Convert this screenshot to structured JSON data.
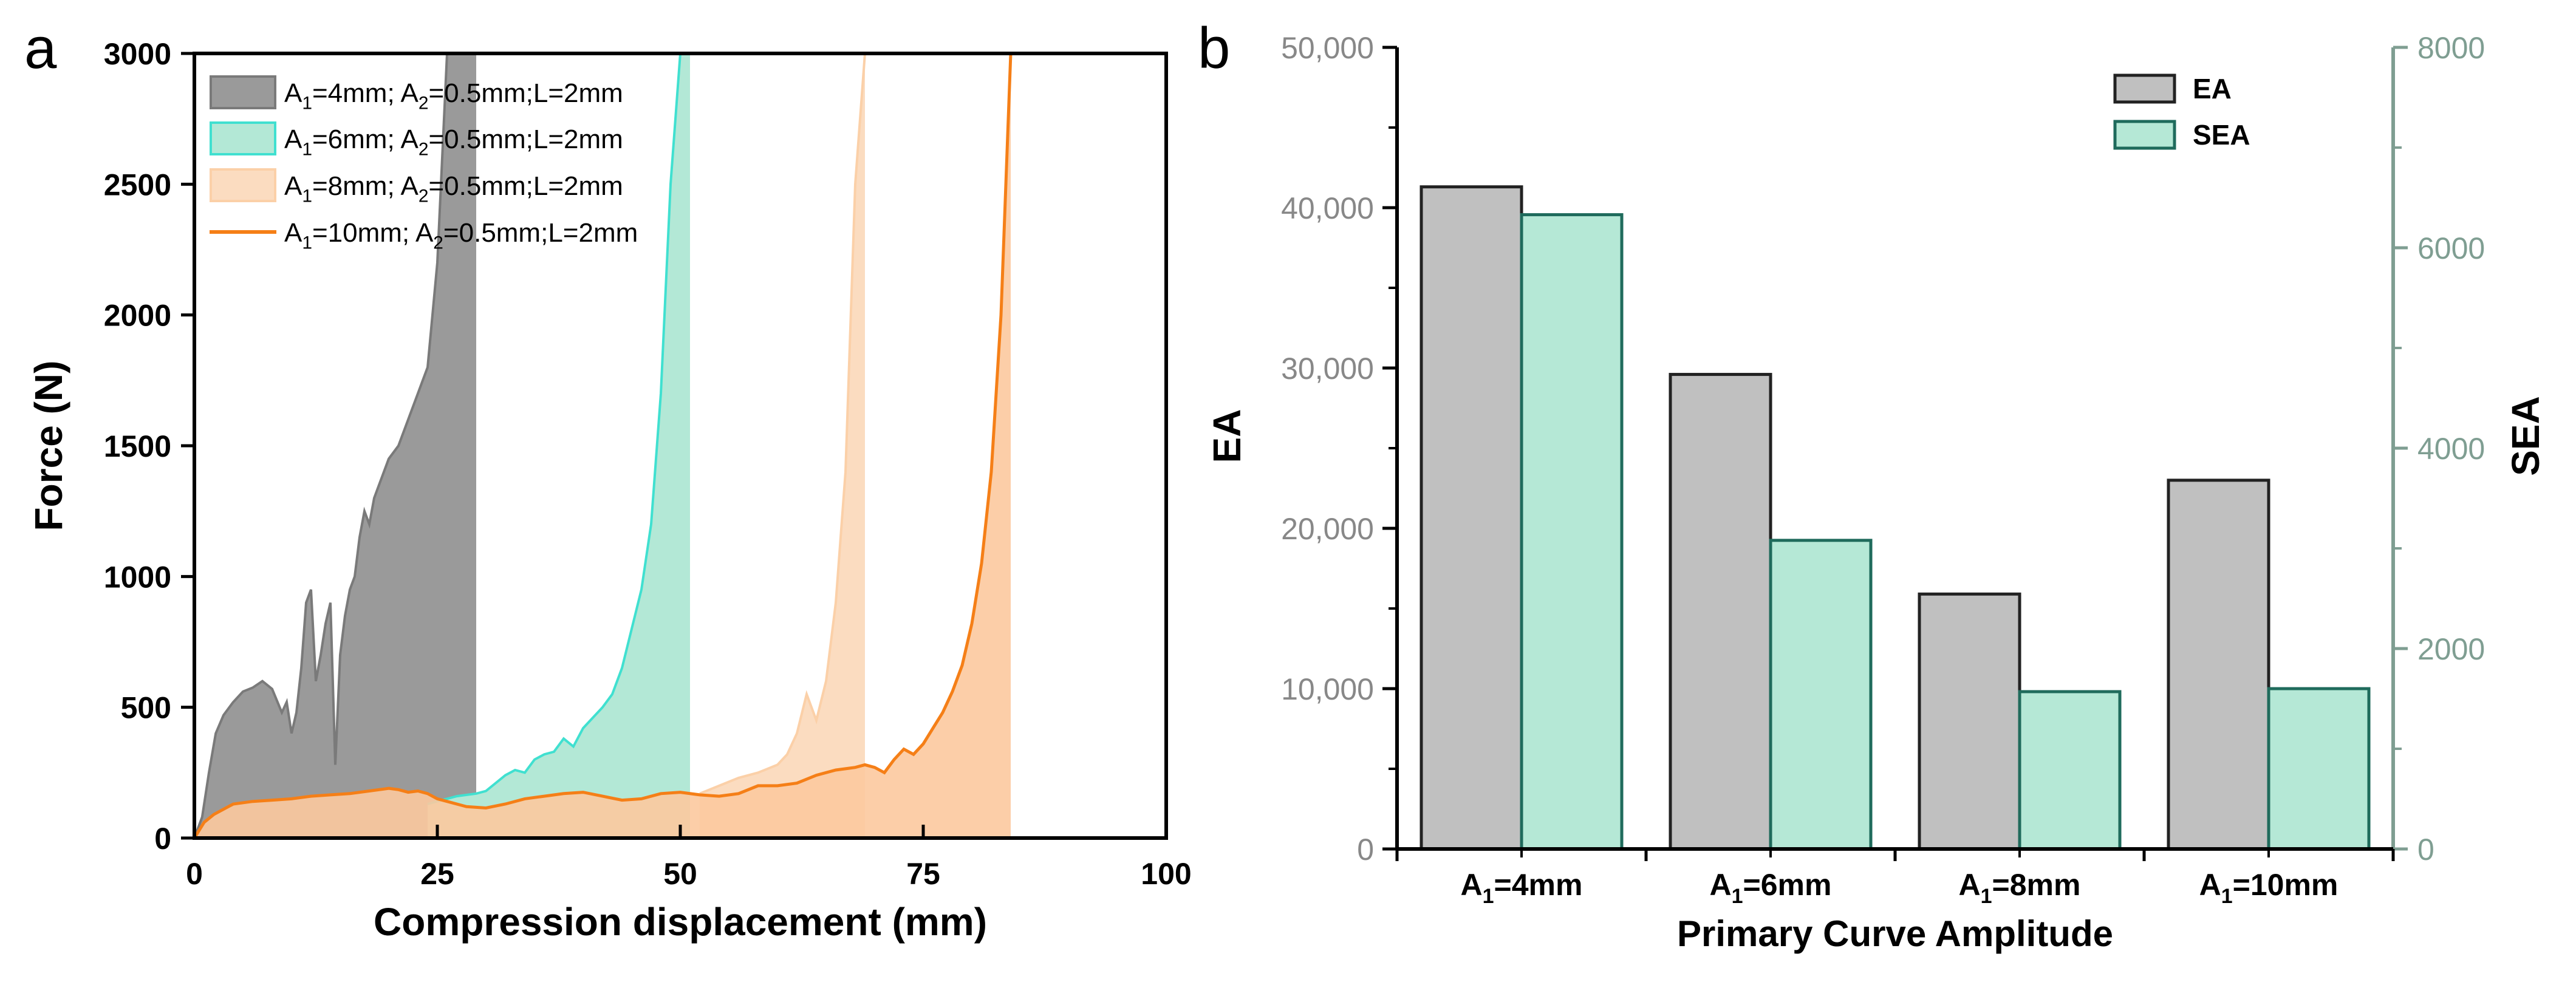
{
  "chart_data": [
    {
      "panel_label": "a",
      "type": "area",
      "xlabel": "Compression displacement (mm)",
      "ylabel": "Force (N)",
      "xlim": [
        0,
        100
      ],
      "ylim": [
        0,
        3000
      ],
      "xticks": [
        "0",
        "25",
        "50",
        "75",
        "100"
      ],
      "yticks": [
        "0",
        "500",
        "1000",
        "1500",
        "2000",
        "2500",
        "3000"
      ],
      "legend_position": "top-left",
      "series": [
        {
          "name": "A1=4mm; A2=0.5mm;L=2mm",
          "legend_parts": [
            "A",
            "1",
            "=4mm; A",
            "2",
            "=0.5mm;L=2mm"
          ],
          "style": "area",
          "fill": "#9a9a9a",
          "stroke": "#7a7a7a",
          "x": [
            0,
            0.8,
            1.5,
            2.2,
            3,
            4,
            5,
            6,
            7,
            8,
            9,
            9.5,
            10,
            10.5,
            11,
            11.5,
            12,
            12.5,
            13,
            13.5,
            14,
            14.5,
            15,
            15.5,
            16,
            16.5,
            17,
            17.5,
            18,
            18.5,
            19,
            20,
            21,
            22,
            23,
            24,
            25,
            26,
            27,
            28,
            29
          ],
          "y": [
            0,
            80,
            250,
            400,
            470,
            520,
            560,
            575,
            600,
            570,
            480,
            520,
            400,
            480,
            650,
            900,
            950,
            600,
            700,
            820,
            900,
            280,
            700,
            850,
            950,
            1000,
            1150,
            1250,
            1200,
            1300,
            1350,
            1450,
            1500,
            1600,
            1700,
            1800,
            2200,
            3000,
            3000,
            3000,
            3000
          ]
        },
        {
          "name": "A1=6mm; A2=0.5mm;L=2mm",
          "legend_parts": [
            "A",
            "1",
            "=6mm; A",
            "2",
            "=0.5mm;L=2mm"
          ],
          "style": "area",
          "fill": "#b3e8d6",
          "stroke": "#40e0d0",
          "x": [
            24,
            25,
            27,
            29,
            30,
            31,
            32,
            33,
            34,
            35,
            36,
            37,
            38,
            39,
            40,
            41,
            42,
            43,
            44,
            45,
            46,
            47,
            48,
            49,
            50,
            51
          ],
          "y": [
            130,
            140,
            160,
            170,
            180,
            210,
            240,
            260,
            250,
            300,
            320,
            330,
            380,
            350,
            420,
            460,
            500,
            550,
            650,
            800,
            950,
            1200,
            1700,
            2500,
            3000,
            3000
          ]
        },
        {
          "name": "A1=8mm; A2=0.5mm;L=2mm",
          "legend_parts": [
            "A",
            "1",
            "=8mm; A",
            "2",
            "=0.5mm;L=2mm"
          ],
          "style": "area",
          "fill": "#fbdcc0",
          "stroke": "#fbd0a8",
          "x": [
            52,
            54,
            56,
            58,
            60,
            61,
            62,
            63,
            64,
            65,
            66,
            67,
            68,
            69
          ],
          "y": [
            170,
            200,
            230,
            250,
            280,
            320,
            400,
            550,
            450,
            600,
            900,
            1400,
            2500,
            3000
          ]
        },
        {
          "name": "A1=10mm; A2=0.5mm;L=2mm",
          "legend_parts": [
            "A",
            "1",
            "=10mm; A",
            "2",
            "=0.5mm;L=2mm"
          ],
          "style": "line-area",
          "fill": "#fcc99e",
          "stroke": "#f57f17",
          "x": [
            0,
            1,
            2,
            3,
            4,
            6,
            8,
            10,
            12,
            14,
            16,
            18,
            20,
            21,
            22,
            23,
            24,
            25,
            26,
            28,
            30,
            32,
            34,
            36,
            38,
            40,
            42,
            44,
            46,
            48,
            50,
            52,
            54,
            56,
            58,
            60,
            62,
            64,
            66,
            68,
            69,
            70,
            71,
            72,
            73,
            74,
            75,
            76,
            77,
            78,
            79,
            80,
            81,
            82,
            83,
            84
          ],
          "y": [
            0,
            60,
            90,
            110,
            130,
            140,
            145,
            150,
            160,
            165,
            170,
            180,
            190,
            185,
            175,
            180,
            170,
            150,
            140,
            120,
            115,
            130,
            150,
            160,
            170,
            175,
            160,
            145,
            150,
            170,
            175,
            165,
            160,
            170,
            200,
            200,
            210,
            240,
            260,
            270,
            280,
            270,
            250,
            300,
            340,
            320,
            360,
            420,
            480,
            560,
            660,
            820,
            1050,
            1400,
            2000,
            3000
          ]
        }
      ]
    },
    {
      "panel_label": "b",
      "type": "bar",
      "xlabel": "Primary Curve Amplitude",
      "ylabel": "EA",
      "y2label": "SEA",
      "categories": [
        "A1=4mm",
        "A1=6mm",
        "A1=8mm",
        "A1=10mm"
      ],
      "category_parts": [
        [
          "A",
          "1",
          "=4mm"
        ],
        [
          "A",
          "1",
          "=6mm"
        ],
        [
          "A",
          "1",
          "=8mm"
        ],
        [
          "A",
          "1",
          "=10mm"
        ]
      ],
      "ylim": [
        0,
        50000
      ],
      "y2lim": [
        0,
        8000
      ],
      "yticks": [
        "0",
        "10,000",
        "20,000",
        "30,000",
        "40,000",
        "50,000"
      ],
      "y2ticks": [
        "0",
        "2000",
        "4000",
        "6000",
        "8000"
      ],
      "legend_position": "top-right",
      "series": [
        {
          "name": "EA",
          "axis": "left",
          "fill": "#c0c0c0",
          "stroke": "#222222",
          "values": [
            41300,
            29600,
            15900,
            23000
          ]
        },
        {
          "name": "SEA",
          "axis": "right",
          "fill": "#b5e8d6",
          "stroke": "#1f6b5c",
          "values": [
            6330,
            3080,
            1570,
            1600
          ]
        }
      ],
      "right_axis_color": "#7f9e92"
    }
  ]
}
